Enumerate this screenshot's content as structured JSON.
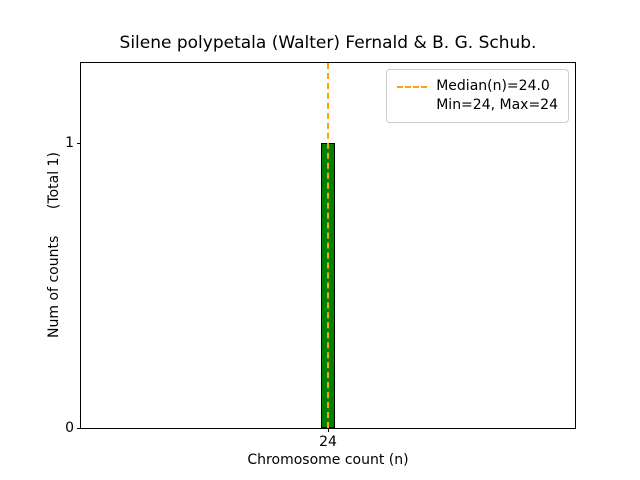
{
  "chart_data": {
    "type": "bar",
    "title": "Silene polypetala (Walter) Fernald & B. G. Schub.",
    "xlabel": "Chromosome count (n)",
    "ylabel": "Num of counts      (Total 1)",
    "categories": [
      24
    ],
    "values": [
      1
    ],
    "xlim": [
      23.5,
      24.5
    ],
    "ylim": [
      0,
      1.28
    ],
    "bar_width": 0.03,
    "bar_color": "#008000",
    "bar_edge_color": "#000000",
    "median_line": {
      "x": 24.0,
      "color": "#ffa500",
      "style": "dashed",
      "label": "Median(n)=24.0"
    },
    "xticks": [
      24
    ],
    "yticks": [
      0,
      1
    ],
    "grid": false,
    "legend_position": "upper right",
    "legend_entries": [
      "Median(n)=24.0",
      "Min=24, Max=24"
    ]
  },
  "legend": {
    "line1": "Median(n)=24.0",
    "line2": "Min=24, Max=24"
  }
}
